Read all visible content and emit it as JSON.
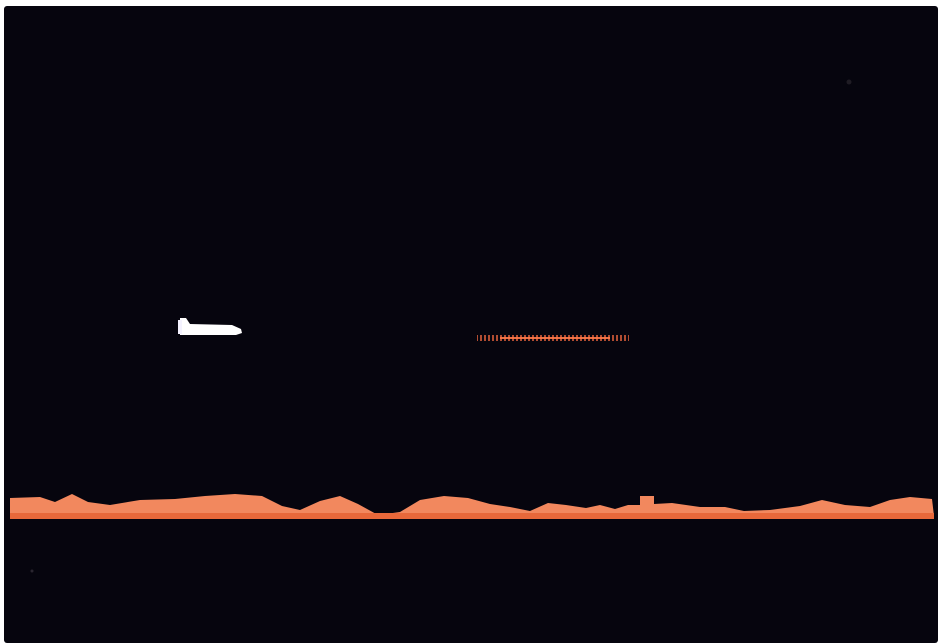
{
  "game": {
    "background_color": "#06050e",
    "bezel_color": "#ffffff"
  },
  "player_ship": {
    "icon": "spaceship-icon",
    "color": "#ffffff"
  },
  "laser_beam": {
    "color": "#e8643c"
  },
  "terrain": {
    "fill_color": "#f2885e",
    "edge_color": "#e8683a"
  }
}
